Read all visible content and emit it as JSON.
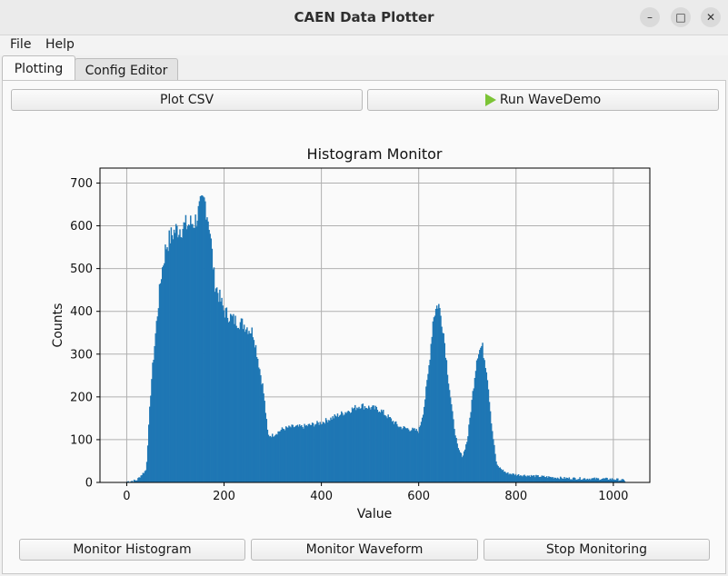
{
  "window": {
    "title": "CAEN Data Plotter"
  },
  "menu": {
    "file": "File",
    "help": "Help"
  },
  "tabs": [
    {
      "label": "Plotting"
    },
    {
      "label": "Config Editor"
    }
  ],
  "toolbar": {
    "plot_csv": "Plot CSV",
    "run_wavedemo": "Run WaveDemo"
  },
  "bottom": {
    "monitor_histogram": "Monitor Histogram",
    "monitor_waveform": "Monitor Waveform",
    "stop_monitoring": "Stop Monitoring"
  },
  "colors": {
    "bar": "#1f77b4",
    "play_icon": "#7cc436"
  },
  "chart_data": {
    "type": "bar",
    "title": "Histogram Monitor",
    "xlabel": "Value",
    "ylabel": "Counts",
    "xlim": [
      -55,
      1075
    ],
    "ylim": [
      0,
      735
    ],
    "xticks": [
      0,
      200,
      400,
      600,
      800,
      1000
    ],
    "yticks": [
      0,
      100,
      200,
      300,
      400,
      500,
      600,
      700
    ],
    "grid": true,
    "x": [
      0,
      20,
      40,
      50,
      60,
      70,
      80,
      90,
      100,
      120,
      140,
      150,
      160,
      170,
      180,
      200,
      220,
      240,
      260,
      280,
      290,
      300,
      320,
      340,
      360,
      380,
      400,
      420,
      440,
      460,
      480,
      500,
      520,
      540,
      560,
      580,
      600,
      610,
      620,
      630,
      640,
      650,
      660,
      670,
      680,
      690,
      700,
      710,
      720,
      730,
      740,
      750,
      760,
      780,
      800,
      850,
      900,
      950,
      1000,
      1020
    ],
    "y": [
      2,
      5,
      30,
      230,
      360,
      480,
      550,
      575,
      590,
      600,
      610,
      640,
      660,
      600,
      470,
      400,
      380,
      370,
      350,
      220,
      110,
      110,
      125,
      130,
      130,
      135,
      140,
      150,
      160,
      170,
      180,
      175,
      170,
      150,
      130,
      125,
      120,
      170,
      260,
      390,
      420,
      360,
      250,
      150,
      80,
      60,
      100,
      200,
      300,
      320,
      260,
      130,
      40,
      22,
      18,
      14,
      10,
      9,
      8,
      5
    ]
  }
}
